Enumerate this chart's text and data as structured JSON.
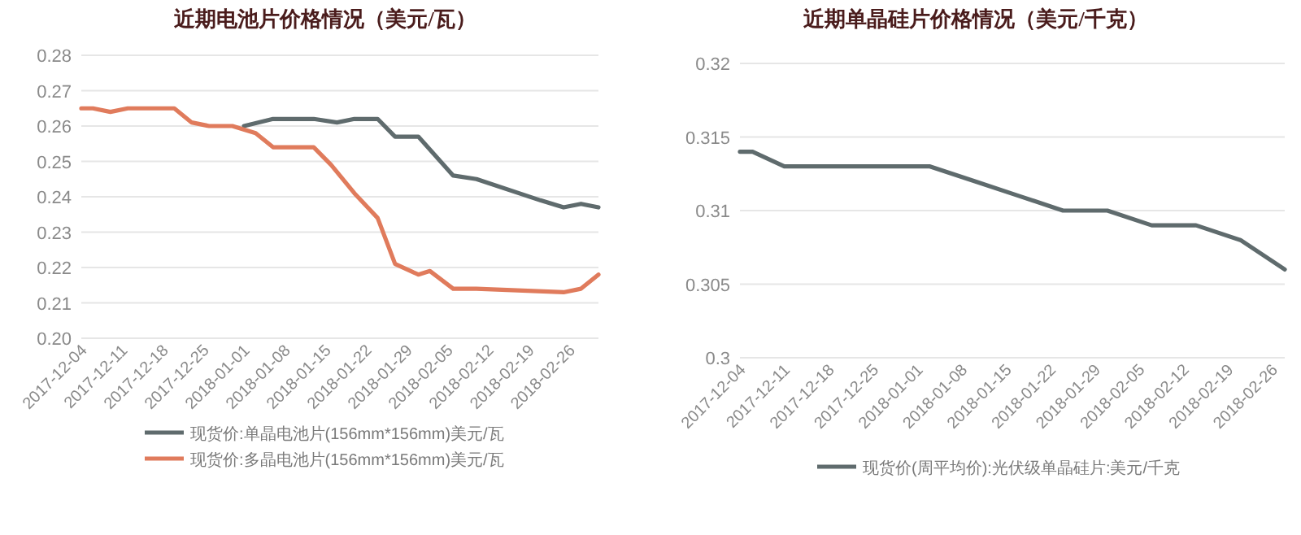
{
  "chart_data": [
    {
      "type": "line",
      "title": "近期电池片价格情况（美元/瓦）",
      "xlim": [
        "2017-12-04",
        "2018-03-03"
      ],
      "xticks": [
        {
          "value": "2017-12-04",
          "label": "2017-12-04"
        },
        {
          "value": "2017-12-11",
          "label": "2017-12-11"
        },
        {
          "value": "2017-12-18",
          "label": "2017-12-18"
        },
        {
          "value": "2017-12-25",
          "label": "2017-12-25"
        },
        {
          "value": "2018-01-01",
          "label": "2018-01-01"
        },
        {
          "value": "2018-01-08",
          "label": "2018-01-08"
        },
        {
          "value": "2018-01-15",
          "label": "2018-01-15"
        },
        {
          "value": "2018-01-22",
          "label": "2018-01-22"
        },
        {
          "value": "2018-01-29",
          "label": "2018-01-29"
        },
        {
          "value": "2018-02-05",
          "label": "2018-02-05"
        },
        {
          "value": "2018-02-12",
          "label": "2018-02-12"
        },
        {
          "value": "2018-02-19",
          "label": "2018-02-19"
        },
        {
          "value": "2018-02-26",
          "label": "2018-02-26"
        }
      ],
      "ylim": [
        0.2,
        0.28
      ],
      "yticks": [
        {
          "value": 0.2,
          "label": "0.20"
        },
        0.21,
        0.22,
        0.23,
        0.24,
        0.25,
        0.26,
        0.27,
        0.28
      ],
      "grid": "y",
      "legend": "bottom",
      "line_style": "solid",
      "marker": "none",
      "series": [
        {
          "name": "现货价:单晶电池片(156mm*156mm)美元/瓦",
          "color": "#5f6b6d",
          "x": [
            "2018-01-01",
            "2018-01-06",
            "2018-01-13",
            "2018-01-17",
            "2018-01-20",
            "2018-01-24",
            "2018-01-27",
            "2018-01-31",
            "2018-02-06",
            "2018-02-10",
            "2018-02-21",
            "2018-02-25",
            "2018-02-28",
            "2018-03-03"
          ],
          "values": [
            0.26,
            0.262,
            0.262,
            0.261,
            0.262,
            0.262,
            0.257,
            0.257,
            0.246,
            0.245,
            0.239,
            0.237,
            0.238,
            0.237
          ]
        },
        {
          "name": "现货价:多晶电池片(156mm*156mm)美元/瓦",
          "color": "#e07b5c",
          "x": [
            "2017-12-04",
            "2017-12-06",
            "2017-12-09",
            "2017-12-12",
            "2017-12-20",
            "2017-12-23",
            "2017-12-26",
            "2017-12-30",
            "2018-01-03",
            "2018-01-06",
            "2018-01-13",
            "2018-01-16",
            "2018-01-20",
            "2018-01-24",
            "2018-01-27",
            "2018-01-31",
            "2018-02-02",
            "2018-02-06",
            "2018-02-10",
            "2018-02-25",
            "2018-02-28",
            "2018-03-03"
          ],
          "values": [
            0.265,
            0.265,
            0.264,
            0.265,
            0.265,
            0.261,
            0.26,
            0.26,
            0.258,
            0.254,
            0.254,
            0.249,
            0.241,
            0.234,
            0.221,
            0.218,
            0.219,
            0.214,
            0.214,
            0.213,
            0.214,
            0.218
          ]
        }
      ]
    },
    {
      "type": "line",
      "title": "近期单晶硅片价格情况（美元/千克）",
      "xlim": [
        "2017-12-04",
        "2018-02-28"
      ],
      "xticks": [
        {
          "value": "2017-12-04",
          "label": "2017-12-04"
        },
        {
          "value": "2017-12-11",
          "label": "2017-12-11"
        },
        {
          "value": "2017-12-18",
          "label": "2017-12-18"
        },
        {
          "value": "2017-12-25",
          "label": "2017-12-25"
        },
        {
          "value": "2018-01-01",
          "label": "2018-01-01"
        },
        {
          "value": "2018-01-08",
          "label": "2018-01-08"
        },
        {
          "value": "2018-01-15",
          "label": "2018-01-15"
        },
        {
          "value": "2018-01-22",
          "label": "2018-01-22"
        },
        {
          "value": "2018-01-29",
          "label": "2018-01-29"
        },
        {
          "value": "2018-02-05",
          "label": "2018-02-05"
        },
        {
          "value": "2018-02-12",
          "label": "2018-02-12"
        },
        {
          "value": "2018-02-19",
          "label": "2018-02-19"
        },
        {
          "value": "2018-02-26",
          "label": "2018-02-26"
        }
      ],
      "ylim": [
        0.3,
        0.32
      ],
      "yticks": [
        0.3,
        0.305,
        0.31,
        0.315,
        0.32
      ],
      "grid": "y",
      "legend": "bottom",
      "line_style": "solid",
      "marker": "none",
      "series": [
        {
          "name": "现货价(周平均价):光伏级单晶硅片:美元/千克",
          "color": "#5f6b6d",
          "x": [
            "2017-12-04",
            "2017-12-06",
            "2017-12-11",
            "2018-01-03",
            "2018-01-10",
            "2018-01-17",
            "2018-01-24",
            "2018-01-31",
            "2018-02-07",
            "2018-02-14",
            "2018-02-21",
            "2018-02-28"
          ],
          "values": [
            0.314,
            0.314,
            0.313,
            0.313,
            0.312,
            0.311,
            0.31,
            0.31,
            0.309,
            0.309,
            0.308,
            0.306
          ]
        }
      ]
    }
  ]
}
